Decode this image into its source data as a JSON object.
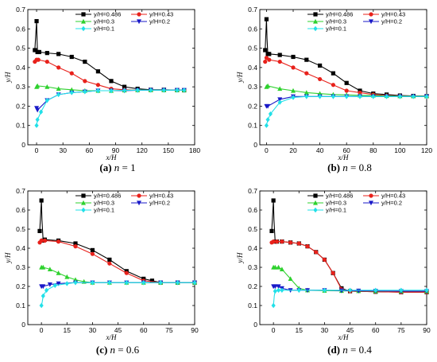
{
  "legend_entries": [
    "y/H=0.486",
    "y/H=0.43",
    "y/H=0.3",
    "y/H=0.2",
    "y/H=0.1"
  ],
  "series_colors": [
    "#000000",
    "#e8211b",
    "#2ed12e",
    "#1919c8",
    "#22e0e8"
  ],
  "series_markers": [
    "square",
    "circle",
    "triangle-up",
    "triangle-down",
    "diamond"
  ],
  "chart_data": [
    {
      "type": "line",
      "panel_label": "(a)",
      "caption_var": "n",
      "caption_eq": " = 1",
      "xlabel": "x/H",
      "ylabel": "y/H",
      "xlim": [
        -10,
        180
      ],
      "ylim": [
        0,
        0.7
      ],
      "xticks": [
        0,
        30,
        60,
        90,
        120,
        150,
        180
      ],
      "yticks": [
        0,
        0.1,
        0.2,
        0.3,
        0.4,
        0.5,
        0.6,
        0.7
      ],
      "legend_position": "top",
      "series": [
        {
          "name": "y/H=0.486",
          "x": [
            -2,
            0,
            0.5,
            1,
            3,
            12,
            25,
            40,
            55,
            70,
            85,
            100,
            115,
            130,
            145,
            160,
            168
          ],
          "y": [
            0.49,
            0.64,
            0.55,
            0.48,
            0.48,
            0.475,
            0.47,
            0.455,
            0.43,
            0.38,
            0.33,
            0.3,
            0.29,
            0.285,
            0.285,
            0.283,
            0.282
          ]
        },
        {
          "name": "y/H=0.43",
          "x": [
            -2,
            0,
            2,
            12,
            25,
            40,
            55,
            70,
            85,
            100,
            115,
            130,
            145,
            160,
            168
          ],
          "y": [
            0.43,
            0.44,
            0.44,
            0.43,
            0.4,
            0.37,
            0.33,
            0.31,
            0.29,
            0.285,
            0.283,
            0.283,
            0.283,
            0.283,
            0.282
          ]
        },
        {
          "name": "y/H=0.3",
          "x": [
            0,
            1,
            12,
            25,
            40,
            55,
            70,
            85,
            100,
            115,
            130,
            145,
            160,
            168
          ],
          "y": [
            0.3,
            0.305,
            0.3,
            0.29,
            0.285,
            0.28,
            0.28,
            0.28,
            0.282,
            0.283,
            0.283,
            0.283,
            0.283,
            0.283
          ]
        },
        {
          "name": "y/H=0.2",
          "x": [
            0,
            1,
            12,
            25,
            40,
            55,
            70,
            85,
            100,
            115,
            130,
            145,
            160,
            168
          ],
          "y": [
            0.19,
            0.18,
            0.23,
            0.26,
            0.27,
            0.275,
            0.28,
            0.28,
            0.28,
            0.282,
            0.283,
            0.283,
            0.283,
            0.283
          ]
        },
        {
          "name": "y/H=0.1",
          "x": [
            0,
            1,
            5,
            12,
            25,
            40,
            55,
            70,
            85,
            100,
            115,
            130,
            145,
            160,
            168
          ],
          "y": [
            0.1,
            0.13,
            0.17,
            0.23,
            0.26,
            0.27,
            0.275,
            0.28,
            0.28,
            0.282,
            0.283,
            0.283,
            0.283,
            0.283,
            0.283
          ]
        }
      ]
    },
    {
      "type": "line",
      "panel_label": "(b)",
      "caption_var": "n",
      "caption_eq": " = 0.8",
      "xlabel": "x/H",
      "ylabel": "y/H",
      "xlim": [
        -5,
        120
      ],
      "ylim": [
        0,
        0.7
      ],
      "xticks": [
        0,
        20,
        40,
        60,
        80,
        100,
        120
      ],
      "yticks": [
        0,
        0.1,
        0.2,
        0.3,
        0.4,
        0.5,
        0.6,
        0.7
      ],
      "legend_position": "top",
      "series": [
        {
          "name": "y/H=0.486",
          "x": [
            -1,
            0,
            0.4,
            1,
            2,
            10,
            20,
            30,
            40,
            50,
            60,
            70,
            80,
            90,
            100,
            110,
            120
          ],
          "y": [
            0.49,
            0.65,
            0.55,
            0.47,
            0.47,
            0.465,
            0.455,
            0.44,
            0.41,
            0.37,
            0.32,
            0.28,
            0.265,
            0.26,
            0.255,
            0.253,
            0.252
          ]
        },
        {
          "name": "y/H=0.43",
          "x": [
            -1,
            0,
            2,
            10,
            20,
            30,
            40,
            50,
            60,
            70,
            80,
            90,
            100,
            110,
            120
          ],
          "y": [
            0.43,
            0.45,
            0.44,
            0.43,
            0.4,
            0.37,
            0.34,
            0.31,
            0.28,
            0.27,
            0.26,
            0.255,
            0.253,
            0.252,
            0.252
          ]
        },
        {
          "name": "y/H=0.3",
          "x": [
            0,
            1,
            10,
            20,
            30,
            40,
            50,
            60,
            70,
            80,
            90,
            100,
            110,
            120
          ],
          "y": [
            0.3,
            0.305,
            0.29,
            0.28,
            0.27,
            0.265,
            0.26,
            0.258,
            0.256,
            0.255,
            0.253,
            0.252,
            0.252,
            0.252
          ]
        },
        {
          "name": "y/H=0.2",
          "x": [
            0,
            1,
            10,
            20,
            30,
            40,
            50,
            60,
            70,
            80,
            90,
            100,
            110,
            120
          ],
          "y": [
            0.2,
            0.2,
            0.235,
            0.25,
            0.25,
            0.25,
            0.25,
            0.25,
            0.25,
            0.25,
            0.25,
            0.25,
            0.25,
            0.25
          ]
        },
        {
          "name": "y/H=0.1",
          "x": [
            0,
            1,
            3,
            10,
            20,
            30,
            40,
            50,
            60,
            70,
            80,
            90,
            100,
            110,
            120
          ],
          "y": [
            0.1,
            0.13,
            0.16,
            0.22,
            0.245,
            0.25,
            0.25,
            0.25,
            0.25,
            0.25,
            0.25,
            0.25,
            0.25,
            0.25,
            0.25
          ]
        }
      ]
    },
    {
      "type": "line",
      "panel_label": "(c)",
      "caption_var": "n",
      "caption_eq": " = 0.6",
      "xlabel": "x/H",
      "ylabel": "y/H",
      "xlim": [
        -8,
        90
      ],
      "ylim": [
        0,
        0.7
      ],
      "xticks": [
        0,
        15,
        30,
        45,
        60,
        75,
        90
      ],
      "yticks": [
        0,
        0.1,
        0.2,
        0.3,
        0.4,
        0.5,
        0.6,
        0.7
      ],
      "legend_position": "top",
      "series": [
        {
          "name": "y/H=0.486",
          "x": [
            -1,
            0,
            0.3,
            1,
            2,
            10,
            20,
            30,
            40,
            50,
            60,
            65,
            70,
            80,
            90
          ],
          "y": [
            0.49,
            0.65,
            0.55,
            0.44,
            0.445,
            0.44,
            0.425,
            0.39,
            0.34,
            0.28,
            0.24,
            0.23,
            0.22,
            0.22,
            0.22
          ]
        },
        {
          "name": "y/H=0.43",
          "x": [
            -1,
            0,
            2,
            10,
            20,
            30,
            40,
            50,
            60,
            70,
            80,
            90
          ],
          "y": [
            0.43,
            0.44,
            0.44,
            0.435,
            0.41,
            0.37,
            0.32,
            0.27,
            0.23,
            0.22,
            0.22,
            0.22
          ]
        },
        {
          "name": "y/H=0.3",
          "x": [
            0,
            1,
            5,
            10,
            15,
            20,
            25,
            30,
            40,
            50,
            60,
            70,
            80,
            90
          ],
          "y": [
            0.3,
            0.3,
            0.29,
            0.27,
            0.25,
            0.235,
            0.225,
            0.22,
            0.22,
            0.22,
            0.22,
            0.22,
            0.22,
            0.22
          ]
        },
        {
          "name": "y/H=0.2",
          "x": [
            0,
            1,
            5,
            10,
            20,
            30,
            40,
            50,
            60,
            70,
            80,
            90
          ],
          "y": [
            0.2,
            0.2,
            0.21,
            0.215,
            0.22,
            0.22,
            0.22,
            0.22,
            0.22,
            0.22,
            0.22,
            0.22
          ]
        },
        {
          "name": "y/H=0.1",
          "x": [
            0,
            0.5,
            1,
            3,
            8,
            15,
            20,
            30,
            40,
            50,
            60,
            70,
            80,
            90
          ],
          "y": [
            0.1,
            0.12,
            0.15,
            0.18,
            0.205,
            0.215,
            0.22,
            0.22,
            0.22,
            0.22,
            0.22,
            0.22,
            0.22,
            0.22
          ]
        }
      ]
    },
    {
      "type": "line",
      "panel_label": "(d)",
      "caption_var": "n",
      "caption_eq": " = 0.4",
      "xlabel": "x/H",
      "ylabel": "y/H",
      "xlim": [
        -8,
        90
      ],
      "ylim": [
        0,
        0.7
      ],
      "xticks": [
        0,
        15,
        30,
        45,
        60,
        75,
        90
      ],
      "yticks": [
        0,
        0.1,
        0.2,
        0.3,
        0.4,
        0.5,
        0.6,
        0.7
      ],
      "legend_position": "top",
      "series": [
        {
          "name": "y/H=0.486",
          "x": [
            -1,
            0,
            0.3,
            1,
            2,
            5,
            10,
            15,
            20,
            25,
            30,
            35,
            40,
            45,
            60,
            75,
            90
          ],
          "y": [
            0.49,
            0.65,
            0.55,
            0.435,
            0.435,
            0.435,
            0.43,
            0.425,
            0.41,
            0.38,
            0.34,
            0.27,
            0.19,
            0.175,
            0.172,
            0.17,
            0.17
          ]
        },
        {
          "name": "y/H=0.43",
          "x": [
            -1,
            0,
            2,
            5,
            10,
            15,
            20,
            25,
            30,
            35,
            40,
            45,
            60,
            75,
            90
          ],
          "y": [
            0.43,
            0.435,
            0.435,
            0.435,
            0.43,
            0.425,
            0.41,
            0.38,
            0.34,
            0.27,
            0.185,
            0.175,
            0.172,
            0.17,
            0.17
          ]
        },
        {
          "name": "y/H=0.3",
          "x": [
            0,
            1,
            3,
            5,
            10,
            15,
            20,
            30,
            40,
            50,
            60,
            75,
            90
          ],
          "y": [
            0.3,
            0.3,
            0.3,
            0.29,
            0.24,
            0.19,
            0.18,
            0.178,
            0.177,
            0.176,
            0.175,
            0.175,
            0.175
          ]
        },
        {
          "name": "y/H=0.2",
          "x": [
            0,
            1,
            3,
            5,
            10,
            15,
            20,
            30,
            40,
            50,
            60,
            75,
            90
          ],
          "y": [
            0.2,
            0.2,
            0.2,
            0.19,
            0.18,
            0.18,
            0.18,
            0.18,
            0.178,
            0.177,
            0.176,
            0.175,
            0.175
          ]
        },
        {
          "name": "y/H=0.1",
          "x": [
            0,
            0.5,
            1,
            3,
            5,
            15,
            30,
            45,
            60,
            75,
            90
          ],
          "y": [
            0.1,
            0.15,
            0.175,
            0.18,
            0.18,
            0.18,
            0.18,
            0.18,
            0.18,
            0.18,
            0.18
          ]
        }
      ]
    }
  ]
}
